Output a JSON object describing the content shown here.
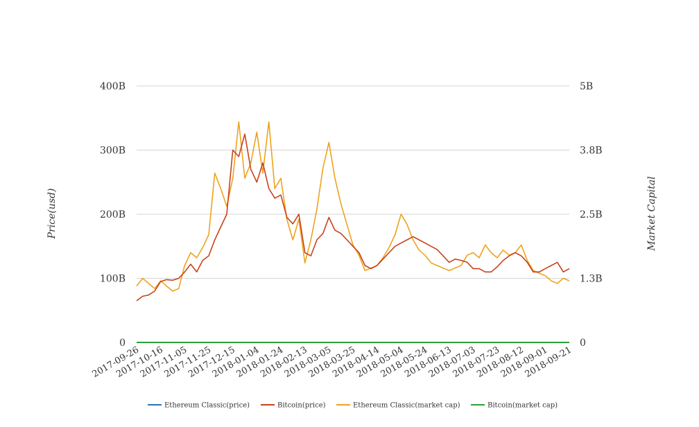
{
  "chart_data": {
    "type": "line",
    "left_axis": {
      "title": "Price(usd)",
      "ticks": [
        "0",
        "100B",
        "200B",
        "300B",
        "400B"
      ],
      "range": [
        0,
        400
      ]
    },
    "right_axis": {
      "title": "Market Capital",
      "ticks": [
        "0",
        "1.3B",
        "2.5B",
        "3.8B",
        "5B"
      ],
      "range": [
        0,
        5
      ]
    },
    "x_tick_labels": [
      "2017-09-26",
      "2017-10-16",
      "2017-11-05",
      "2017-11-25",
      "2017-12-15",
      "2018-01-04",
      "2018-01-24",
      "2018-02-13",
      "2018-03-05",
      "2018-03-25",
      "2018-04-14",
      "2018-05-04",
      "2018-05-24",
      "2018-06-13",
      "2018-07-03",
      "2018-07-23",
      "2018-08-12",
      "2018-09-01",
      "2018-09-21"
    ],
    "grid": true,
    "legend_position": "bottom",
    "series": [
      {
        "name": "Ethereum Classic(price)",
        "color": "#2f6fb3",
        "axis": "left",
        "x": [
          "2017-09-26",
          "2018-09-21"
        ],
        "y": [
          0,
          0
        ]
      },
      {
        "name": "Bitcoin(price)",
        "color": "#c8411b",
        "axis": "left",
        "x": [
          "2017-09-26",
          "2017-10-01",
          "2017-10-06",
          "2017-10-11",
          "2017-10-16",
          "2017-10-21",
          "2017-10-26",
          "2017-10-31",
          "2017-11-05",
          "2017-11-10",
          "2017-11-15",
          "2017-11-20",
          "2017-11-25",
          "2017-11-30",
          "2017-12-05",
          "2017-12-10",
          "2017-12-15",
          "2017-12-20",
          "2017-12-25",
          "2017-12-30",
          "2018-01-04",
          "2018-01-09",
          "2018-01-14",
          "2018-01-19",
          "2018-01-24",
          "2018-01-29",
          "2018-02-03",
          "2018-02-08",
          "2018-02-13",
          "2018-02-18",
          "2018-02-23",
          "2018-02-28",
          "2018-03-05",
          "2018-03-10",
          "2018-03-15",
          "2018-03-20",
          "2018-03-25",
          "2018-03-30",
          "2018-04-04",
          "2018-04-09",
          "2018-04-14",
          "2018-04-19",
          "2018-04-24",
          "2018-04-29",
          "2018-05-04",
          "2018-05-09",
          "2018-05-14",
          "2018-05-19",
          "2018-05-24",
          "2018-05-29",
          "2018-06-03",
          "2018-06-08",
          "2018-06-13",
          "2018-06-18",
          "2018-06-23",
          "2018-06-28",
          "2018-07-03",
          "2018-07-08",
          "2018-07-13",
          "2018-07-18",
          "2018-07-23",
          "2018-07-28",
          "2018-08-02",
          "2018-08-07",
          "2018-08-12",
          "2018-08-17",
          "2018-08-22",
          "2018-08-27",
          "2018-09-01",
          "2018-09-06",
          "2018-09-11",
          "2018-09-16",
          "2018-09-21"
        ],
        "y": [
          65,
          72,
          74,
          80,
          95,
          98,
          97,
          100,
          110,
          122,
          110,
          128,
          135,
          160,
          180,
          200,
          300,
          290,
          325,
          270,
          250,
          280,
          240,
          225,
          230,
          195,
          185,
          200,
          140,
          135,
          160,
          170,
          195,
          175,
          170,
          160,
          150,
          140,
          120,
          115,
          120,
          130,
          140,
          150,
          155,
          160,
          165,
          160,
          155,
          150,
          145,
          135,
          125,
          130,
          128,
          125,
          115,
          115,
          110,
          110,
          118,
          128,
          135,
          140,
          135,
          125,
          110,
          110,
          115,
          120,
          125,
          110,
          115
        ]
      },
      {
        "name": "Ethereum Classic(market cap)",
        "color": "#eea21c",
        "axis": "right",
        "x": [
          "2017-09-26",
          "2017-10-01",
          "2017-10-06",
          "2017-10-11",
          "2017-10-16",
          "2017-10-21",
          "2017-10-26",
          "2017-10-31",
          "2017-11-05",
          "2017-11-10",
          "2017-11-15",
          "2017-11-20",
          "2017-11-25",
          "2017-11-30",
          "2017-12-05",
          "2017-12-10",
          "2017-12-15",
          "2017-12-20",
          "2017-12-25",
          "2017-12-30",
          "2018-01-04",
          "2018-01-09",
          "2018-01-14",
          "2018-01-19",
          "2018-01-24",
          "2018-01-29",
          "2018-02-03",
          "2018-02-08",
          "2018-02-13",
          "2018-02-18",
          "2018-02-23",
          "2018-02-28",
          "2018-03-05",
          "2018-03-10",
          "2018-03-15",
          "2018-03-20",
          "2018-03-25",
          "2018-03-30",
          "2018-04-04",
          "2018-04-09",
          "2018-04-14",
          "2018-04-19",
          "2018-04-24",
          "2018-04-29",
          "2018-05-04",
          "2018-05-09",
          "2018-05-14",
          "2018-05-19",
          "2018-05-24",
          "2018-05-29",
          "2018-06-03",
          "2018-06-08",
          "2018-06-13",
          "2018-06-18",
          "2018-06-23",
          "2018-06-28",
          "2018-07-03",
          "2018-07-08",
          "2018-07-13",
          "2018-07-18",
          "2018-07-23",
          "2018-07-28",
          "2018-08-02",
          "2018-08-07",
          "2018-08-12",
          "2018-08-17",
          "2018-08-22",
          "2018-08-27",
          "2018-09-01",
          "2018-09-06",
          "2018-09-11",
          "2018-09-16",
          "2018-09-21"
        ],
        "y": [
          1.1,
          1.25,
          1.15,
          1.05,
          1.2,
          1.1,
          1.0,
          1.05,
          1.5,
          1.75,
          1.65,
          1.85,
          2.1,
          3.3,
          3.0,
          2.65,
          3.2,
          4.3,
          3.2,
          3.5,
          4.1,
          3.3,
          4.3,
          3.0,
          3.2,
          2.4,
          2.0,
          2.4,
          1.55,
          2.0,
          2.6,
          3.4,
          3.9,
          3.2,
          2.7,
          2.3,
          1.9,
          1.7,
          1.4,
          1.45,
          1.5,
          1.65,
          1.85,
          2.1,
          2.5,
          2.3,
          2.0,
          1.8,
          1.7,
          1.55,
          1.5,
          1.45,
          1.4,
          1.45,
          1.5,
          1.7,
          1.75,
          1.65,
          1.9,
          1.75,
          1.65,
          1.8,
          1.7,
          1.75,
          1.9,
          1.6,
          1.4,
          1.35,
          1.3,
          1.2,
          1.15,
          1.25,
          1.2
        ]
      },
      {
        "name": "Bitcoin(market cap)",
        "color": "#2e9e3b",
        "axis": "right",
        "x": [
          "2017-09-26",
          "2018-09-21"
        ],
        "y": [
          0,
          0
        ]
      }
    ]
  }
}
